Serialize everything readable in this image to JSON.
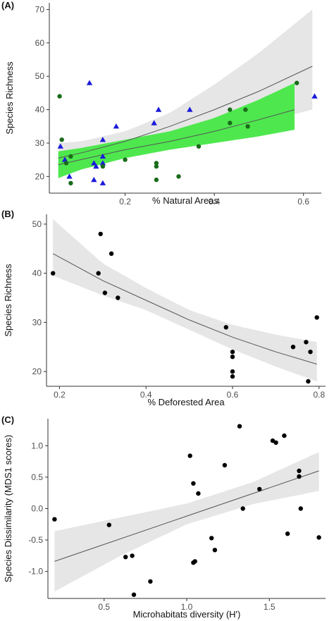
{
  "chart_data": [
    {
      "type": "scatter",
      "panel_label": "(A)",
      "xlabel": "% Natural Areas",
      "ylabel": "Species Richness",
      "xlim": [
        0.03,
        0.64
      ],
      "ylim": [
        15,
        72
      ],
      "xticks": [
        0.2,
        0.4,
        0.6
      ],
      "xtick_labels": [
        "0.2",
        "0.4",
        "0.6"
      ],
      "yticks": [
        20,
        30,
        40,
        50,
        60,
        70
      ],
      "ytick_labels": [
        "20",
        "30",
        "40",
        "50",
        "60",
        "70"
      ],
      "grid": false,
      "series": [
        {
          "marker": "triangle",
          "color": "#1a1adb",
          "points": [
            {
              "x": 0.055,
              "y": 29
            },
            {
              "x": 0.065,
              "y": 25
            },
            {
              "x": 0.075,
              "y": 20
            },
            {
              "x": 0.12,
              "y": 48
            },
            {
              "x": 0.13,
              "y": 24
            },
            {
              "x": 0.13,
              "y": 19
            },
            {
              "x": 0.135,
              "y": 23
            },
            {
              "x": 0.15,
              "y": 31
            },
            {
              "x": 0.15,
              "y": 26
            },
            {
              "x": 0.15,
              "y": 24
            },
            {
              "x": 0.15,
              "y": 18
            },
            {
              "x": 0.18,
              "y": 35
            },
            {
              "x": 0.265,
              "y": 36
            },
            {
              "x": 0.275,
              "y": 40
            },
            {
              "x": 0.345,
              "y": 40
            },
            {
              "x": 0.625,
              "y": 44
            }
          ],
          "fit": {
            "x": [
              0.05,
              0.1,
              0.2,
              0.3,
              0.4,
              0.5,
              0.62
            ],
            "y": [
              25.5,
              27,
              30.5,
              35,
              40,
              45.5,
              53
            ]
          },
          "band": {
            "x": [
              0.05,
              0.1,
              0.2,
              0.3,
              0.4,
              0.5,
              0.62
            ],
            "lower": [
              21,
              24,
              28,
              31,
              33.5,
              36,
              40
            ],
            "upper": [
              30,
              30.5,
              33.5,
              39,
              47.5,
              57,
              70
            ]
          },
          "band_color": "#e6e6e6"
        },
        {
          "marker": "circle",
          "color": "#1a6b1a",
          "points": [
            {
              "x": 0.053,
              "y": 44
            },
            {
              "x": 0.058,
              "y": 31
            },
            {
              "x": 0.068,
              "y": 24
            },
            {
              "x": 0.078,
              "y": 18
            },
            {
              "x": 0.078,
              "y": 26
            },
            {
              "x": 0.15,
              "y": 23
            },
            {
              "x": 0.2,
              "y": 25
            },
            {
              "x": 0.27,
              "y": 24
            },
            {
              "x": 0.27,
              "y": 23
            },
            {
              "x": 0.27,
              "y": 19
            },
            {
              "x": 0.32,
              "y": 20
            },
            {
              "x": 0.365,
              "y": 29
            },
            {
              "x": 0.435,
              "y": 40
            },
            {
              "x": 0.435,
              "y": 36
            },
            {
              "x": 0.47,
              "y": 40
            },
            {
              "x": 0.475,
              "y": 35
            },
            {
              "x": 0.585,
              "y": 48
            }
          ],
          "fit": {
            "x": [
              0.05,
              0.1,
              0.2,
              0.3,
              0.4,
              0.5,
              0.58
            ],
            "y": [
              23.5,
              25,
              28,
              30.5,
              33.5,
              37,
              40
            ]
          },
          "band": {
            "x": [
              0.05,
              0.1,
              0.2,
              0.3,
              0.4,
              0.5,
              0.58
            ],
            "lower": [
              19.5,
              22,
              25.5,
              28,
              30,
              32,
              34
            ],
            "upper": [
              27.5,
              28.5,
              31,
              33.5,
              37.5,
              43,
              48
            ]
          },
          "band_color": "#4ee84e"
        }
      ]
    },
    {
      "type": "scatter",
      "panel_label": "(B)",
      "xlabel": "% Deforested Area",
      "ylabel": "Species Richness",
      "xlim": [
        0.17,
        0.815
      ],
      "ylim": [
        17,
        52
      ],
      "xticks": [
        0.2,
        0.4,
        0.6,
        0.8
      ],
      "xtick_labels": [
        "0.2",
        "0.4",
        "0.6",
        "0.8"
      ],
      "yticks": [
        20,
        30,
        40,
        50
      ],
      "ytick_labels": [
        "20",
        "30",
        "40",
        "50"
      ],
      "grid": false,
      "series": [
        {
          "marker": "circle",
          "color": "#000000",
          "points": [
            {
              "x": 0.185,
              "y": 40
            },
            {
              "x": 0.29,
              "y": 40
            },
            {
              "x": 0.295,
              "y": 48
            },
            {
              "x": 0.305,
              "y": 36
            },
            {
              "x": 0.32,
              "y": 44
            },
            {
              "x": 0.335,
              "y": 35
            },
            {
              "x": 0.585,
              "y": 29
            },
            {
              "x": 0.6,
              "y": 24
            },
            {
              "x": 0.6,
              "y": 23
            },
            {
              "x": 0.6,
              "y": 20
            },
            {
              "x": 0.6,
              "y": 19
            },
            {
              "x": 0.74,
              "y": 25
            },
            {
              "x": 0.77,
              "y": 26
            },
            {
              "x": 0.775,
              "y": 18
            },
            {
              "x": 0.78,
              "y": 24
            },
            {
              "x": 0.795,
              "y": 31
            }
          ],
          "fit": {
            "x": [
              0.185,
              0.3,
              0.4,
              0.5,
              0.6,
              0.7,
              0.795
            ],
            "y": [
              44,
              38.5,
              34.5,
              30.5,
              27,
              24,
              21.5
            ]
          },
          "band": {
            "x": [
              0.185,
              0.3,
              0.4,
              0.5,
              0.6,
              0.7,
              0.795
            ],
            "lower": [
              39.5,
              35.5,
              32.5,
              28.5,
              24.5,
              21,
              18
            ],
            "upper": [
              51,
              42,
              37,
              32.5,
              29.5,
              27.5,
              26
            ]
          },
          "band_color": "#e6e6e6"
        }
      ]
    },
    {
      "type": "scatter",
      "panel_label": "(C)",
      "xlabel": "Microhabitats diversity (H')",
      "ylabel": "Species Dissimilarity (MDS1 scores)",
      "xlim": [
        0.16,
        1.84
      ],
      "ylim": [
        -1.43,
        1.43
      ],
      "xticks": [
        0.5,
        1.0,
        1.5
      ],
      "xtick_labels": [
        "0.5",
        "1.0",
        "1.5"
      ],
      "yticks": [
        -1.0,
        -0.5,
        0.0,
        0.5,
        1.0
      ],
      "ytick_labels": [
        "-1.0",
        "-0.5",
        "0.0",
        "0.5",
        "1.0"
      ],
      "grid": false,
      "series": [
        {
          "marker": "circle",
          "color": "#000000",
          "points": [
            {
              "x": 0.2,
              "y": -0.17
            },
            {
              "x": 0.53,
              "y": -0.26
            },
            {
              "x": 0.63,
              "y": -0.77
            },
            {
              "x": 0.67,
              "y": -0.75
            },
            {
              "x": 0.68,
              "y": -1.37
            },
            {
              "x": 0.78,
              "y": -1.16
            },
            {
              "x": 1.02,
              "y": 0.84
            },
            {
              "x": 1.04,
              "y": 0.4
            },
            {
              "x": 1.04,
              "y": -0.86
            },
            {
              "x": 1.05,
              "y": -0.84
            },
            {
              "x": 1.07,
              "y": 0.24
            },
            {
              "x": 1.15,
              "y": -0.47
            },
            {
              "x": 1.17,
              "y": -0.66
            },
            {
              "x": 1.23,
              "y": 0.69
            },
            {
              "x": 1.32,
              "y": 1.31
            },
            {
              "x": 1.34,
              "y": 0.0
            },
            {
              "x": 1.44,
              "y": 0.31
            },
            {
              "x": 1.52,
              "y": 1.08
            },
            {
              "x": 1.54,
              "y": 1.05
            },
            {
              "x": 1.59,
              "y": 1.16
            },
            {
              "x": 1.61,
              "y": -0.4
            },
            {
              "x": 1.68,
              "y": 0.6
            },
            {
              "x": 1.68,
              "y": 0.51
            },
            {
              "x": 1.69,
              "y": 0.0
            },
            {
              "x": 1.8,
              "y": -0.46
            }
          ],
          "fit": {
            "x": [
              0.2,
              1.8
            ],
            "y": [
              -0.84,
              0.6
            ]
          },
          "band": {
            "x": [
              0.2,
              0.6,
              1.0,
              1.4,
              1.8
            ],
            "lower": [
              -1.32,
              -0.75,
              -0.25,
              0.07,
              0.28
            ],
            "upper": [
              -0.36,
              -0.14,
              0.08,
              0.42,
              0.9
            ]
          },
          "band_color": "#e6e6e6"
        }
      ]
    }
  ]
}
